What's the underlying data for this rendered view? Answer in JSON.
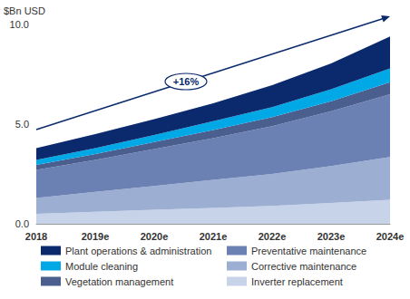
{
  "chart_data": {
    "type": "area",
    "y_label": "$Bn USD",
    "annotations": [
      {
        "text": "+16%"
      }
    ],
    "categories": [
      "2018",
      "2019e",
      "2020e",
      "2021e",
      "2022e",
      "2023e",
      "2024e"
    ],
    "series": [
      {
        "name": "Inverter replacement",
        "color": "#c7d3e9",
        "values": [
          0.5,
          0.6,
          0.7,
          0.8,
          0.9,
          1.05,
          1.2
        ]
      },
      {
        "name": "Corrective maintenance",
        "color": "#9cafd3",
        "values": [
          0.8,
          1.0,
          1.2,
          1.4,
          1.6,
          1.85,
          2.15
        ]
      },
      {
        "name": "Preventative maintenance",
        "color": "#6b80b3",
        "values": [
          1.4,
          1.6,
          1.85,
          2.1,
          2.4,
          2.75,
          3.15
        ]
      },
      {
        "name": "Vegetation management",
        "color": "#4b5f8f",
        "values": [
          0.25,
          0.3,
          0.35,
          0.4,
          0.45,
          0.5,
          0.6
        ]
      },
      {
        "name": "Module cleaning",
        "color": "#00a9e6",
        "values": [
          0.25,
          0.3,
          0.35,
          0.45,
          0.5,
          0.6,
          0.7
        ]
      },
      {
        "name": "Plant operations & administration",
        "color": "#0b2a6e",
        "values": [
          0.6,
          0.7,
          0.8,
          0.9,
          1.1,
          1.3,
          1.6
        ]
      }
    ],
    "stacked": true,
    "ylim": [
      0,
      10
    ],
    "yticks": [
      {
        "value": 0,
        "label": "0.0"
      },
      {
        "value": 5,
        "label": "5.0"
      },
      {
        "value": 10,
        "label": "10.0"
      }
    ],
    "grid": false,
    "legend": "bottom"
  }
}
